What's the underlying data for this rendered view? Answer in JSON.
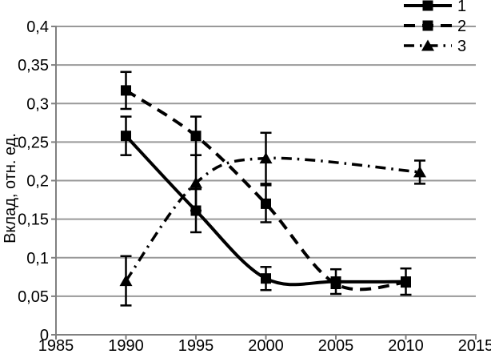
{
  "figure": {
    "background": "#ffffff",
    "grid_color": "#999999",
    "axis_color": "#808080",
    "data_color": "#000000"
  },
  "chart_data": {
    "type": "line",
    "title": "",
    "xlabel": "",
    "ylabel": "Вклад, отн. ед.",
    "xlim": [
      1985,
      2015
    ],
    "ylim": [
      0,
      0.4
    ],
    "grid": "horizontal",
    "legend_position": "top-right",
    "x_ticks": [
      1985,
      1990,
      1995,
      2000,
      2005,
      2010,
      2015
    ],
    "x_tick_labels": [
      "1985",
      "1990",
      "1995",
      "2000",
      "2005",
      "2010",
      "2015"
    ],
    "y_ticks": [
      0,
      0.05,
      0.1,
      0.15,
      0.2,
      0.25,
      0.3,
      0.35,
      0.4
    ],
    "y_tick_labels": [
      "0",
      "0,05",
      "0,1",
      "0,15",
      "0,2",
      "0,25",
      "0,3",
      "0,35",
      "0,4"
    ],
    "series": [
      {
        "name": "1",
        "marker": "square",
        "line": "solid",
        "points": [
          {
            "x": 1990,
            "y": 0.258,
            "err": 0.025
          },
          {
            "x": 1995,
            "y": 0.161,
            "err": 0.028
          },
          {
            "x": 2000,
            "y": 0.073,
            "err": 0.015
          },
          {
            "x": 2005,
            "y": 0.069,
            "err": 0.016
          },
          {
            "x": 2010,
            "y": 0.069,
            "err": 0.017
          }
        ]
      },
      {
        "name": "2",
        "marker": "square",
        "line": "dashed",
        "points": [
          {
            "x": 1990,
            "y": 0.317,
            "err": 0.024
          },
          {
            "x": 1995,
            "y": 0.258,
            "err": 0.025
          },
          {
            "x": 2000,
            "y": 0.17,
            "err": 0.024
          },
          {
            "x": 2005,
            "y": 0.066,
            "err": null
          },
          {
            "x": 2010,
            "y": 0.068,
            "err": null
          }
        ]
      },
      {
        "name": "3",
        "marker": "triangle",
        "line": "dashdot",
        "points": [
          {
            "x": 1990,
            "y": 0.07,
            "err": 0.032
          },
          {
            "x": 1995,
            "y": 0.197,
            "err": 0.036
          },
          {
            "x": 2000,
            "y": 0.229,
            "err": 0.033
          },
          {
            "x": 2011,
            "y": 0.211,
            "err": 0.015
          }
        ]
      }
    ]
  }
}
